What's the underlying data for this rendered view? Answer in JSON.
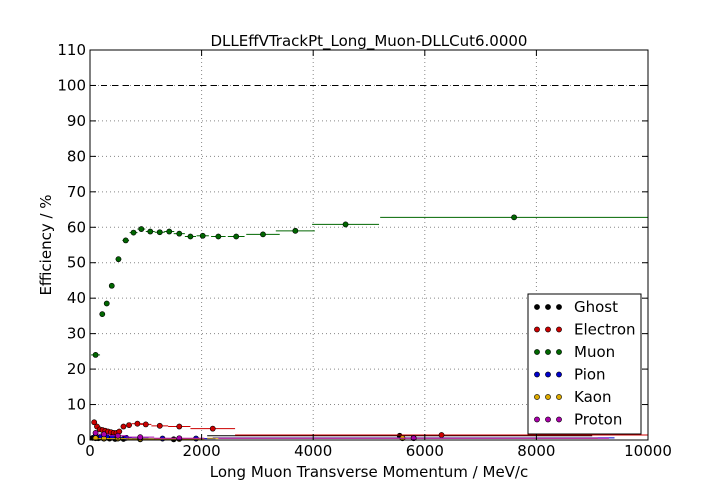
{
  "chart_data": {
    "type": "scatter",
    "title": "DLLEffVTrackPt_Long_Muon-DLLCut6.0000",
    "xlabel": "Long Muon Transverse Momentum / MeV/c",
    "ylabel": "Efficiency / %",
    "xlim": [
      0,
      10000
    ],
    "ylim": [
      0,
      110
    ],
    "xticks": [
      0,
      2000,
      4000,
      6000,
      8000,
      10000
    ],
    "yticks": [
      0,
      10,
      20,
      30,
      40,
      50,
      60,
      70,
      80,
      90,
      100,
      110
    ],
    "grid": true,
    "reference_line": 100,
    "legend_position": "lower-right",
    "series": [
      {
        "name": "Ghost",
        "color": "#000000",
        "points": [
          {
            "x": 50,
            "y": 0.6,
            "xerr": 50
          },
          {
            "x": 150,
            "y": 0.5,
            "xerr": 50
          },
          {
            "x": 250,
            "y": 0.4,
            "xerr": 50
          },
          {
            "x": 350,
            "y": 0.4,
            "xerr": 50
          },
          {
            "x": 450,
            "y": 0.3,
            "xerr": 50
          },
          {
            "x": 600,
            "y": 0.3,
            "xerr": 100
          },
          {
            "x": 900,
            "y": 0.2,
            "xerr": 200
          },
          {
            "x": 1500,
            "y": 0.2,
            "xerr": 400
          },
          {
            "x": 5550,
            "y": 1.2,
            "xerr": 3450
          }
        ]
      },
      {
        "name": "Electron",
        "color": "#cc0000",
        "points": [
          {
            "x": 75,
            "y": 5.0,
            "xerr": 25
          },
          {
            "x": 125,
            "y": 3.8,
            "xerr": 25
          },
          {
            "x": 175,
            "y": 3.0,
            "xerr": 25
          },
          {
            "x": 225,
            "y": 2.8,
            "xerr": 25
          },
          {
            "x": 275,
            "y": 2.6,
            "xerr": 25
          },
          {
            "x": 325,
            "y": 2.4,
            "xerr": 25
          },
          {
            "x": 375,
            "y": 2.2,
            "xerr": 25
          },
          {
            "x": 425,
            "y": 2.0,
            "xerr": 25
          },
          {
            "x": 475,
            "y": 2.0,
            "xerr": 25
          },
          {
            "x": 525,
            "y": 2.4,
            "xerr": 25
          },
          {
            "x": 600,
            "y": 3.8,
            "xerr": 50
          },
          {
            "x": 700,
            "y": 4.2,
            "xerr": 50
          },
          {
            "x": 850,
            "y": 4.6,
            "xerr": 100
          },
          {
            "x": 1000,
            "y": 4.4,
            "xerr": 100
          },
          {
            "x": 1250,
            "y": 4.0,
            "xerr": 150
          },
          {
            "x": 1600,
            "y": 3.8,
            "xerr": 200
          },
          {
            "x": 2200,
            "y": 3.2,
            "xerr": 400
          },
          {
            "x": 6300,
            "y": 1.4,
            "xerr": 3700
          }
        ]
      },
      {
        "name": "Muon",
        "color": "#006600",
        "points": [
          {
            "x": 100,
            "y": 24.0,
            "xerr": 80
          },
          {
            "x": 220,
            "y": 35.5,
            "xerr": 40
          },
          {
            "x": 300,
            "y": 38.5,
            "xerr": 40
          },
          {
            "x": 390,
            "y": 43.5,
            "xerr": 40
          },
          {
            "x": 510,
            "y": 51.0,
            "xerr": 50
          },
          {
            "x": 640,
            "y": 56.3,
            "xerr": 60
          },
          {
            "x": 780,
            "y": 58.5,
            "xerr": 70
          },
          {
            "x": 920,
            "y": 59.5,
            "xerr": 70
          },
          {
            "x": 1080,
            "y": 58.8,
            "xerr": 80
          },
          {
            "x": 1250,
            "y": 58.6,
            "xerr": 90
          },
          {
            "x": 1420,
            "y": 58.8,
            "xerr": 90
          },
          {
            "x": 1600,
            "y": 58.2,
            "xerr": 100
          },
          {
            "x": 1800,
            "y": 57.4,
            "xerr": 100
          },
          {
            "x": 2020,
            "y": 57.6,
            "xerr": 110
          },
          {
            "x": 2300,
            "y": 57.4,
            "xerr": 130
          },
          {
            "x": 2620,
            "y": 57.4,
            "xerr": 150
          },
          {
            "x": 3100,
            "y": 58.0,
            "xerr": 300
          },
          {
            "x": 3680,
            "y": 59.0,
            "xerr": 350
          },
          {
            "x": 4580,
            "y": 60.8,
            "xerr": 600
          },
          {
            "x": 7600,
            "y": 62.8,
            "xerr": 2400
          }
        ]
      },
      {
        "name": "Pion",
        "color": "#0000cc",
        "points": [
          {
            "x": 100,
            "y": 1.2,
            "xerr": 50
          },
          {
            "x": 200,
            "y": 1.0,
            "xerr": 50
          },
          {
            "x": 300,
            "y": 0.9,
            "xerr": 50
          },
          {
            "x": 400,
            "y": 0.8,
            "xerr": 50
          },
          {
            "x": 500,
            "y": 0.7,
            "xerr": 50
          },
          {
            "x": 650,
            "y": 0.6,
            "xerr": 100
          },
          {
            "x": 900,
            "y": 0.5,
            "xerr": 150
          },
          {
            "x": 1300,
            "y": 0.4,
            "xerr": 250
          },
          {
            "x": 1900,
            "y": 0.4,
            "xerr": 350
          },
          {
            "x": 5800,
            "y": 0.6,
            "xerr": 3600
          }
        ]
      },
      {
        "name": "Kaon",
        "color": "#ddaa00",
        "points": [
          {
            "x": 100,
            "y": 0.5,
            "xerr": 50
          },
          {
            "x": 250,
            "y": 0.4,
            "xerr": 100
          },
          {
            "x": 500,
            "y": 0.4,
            "xerr": 150
          },
          {
            "x": 900,
            "y": 0.3,
            "xerr": 250
          },
          {
            "x": 1600,
            "y": 0.3,
            "xerr": 450
          },
          {
            "x": 5600,
            "y": 0.5,
            "xerr": 3500
          }
        ]
      },
      {
        "name": "Proton",
        "color": "#aa00aa",
        "points": [
          {
            "x": 100,
            "y": 2.0,
            "xerr": 50
          },
          {
            "x": 250,
            "y": 1.6,
            "xerr": 100
          },
          {
            "x": 500,
            "y": 1.2,
            "xerr": 150
          },
          {
            "x": 900,
            "y": 0.8,
            "xerr": 250
          },
          {
            "x": 1600,
            "y": 0.5,
            "xerr": 450
          },
          {
            "x": 5800,
            "y": 0.5,
            "xerr": 3500
          }
        ]
      }
    ]
  }
}
